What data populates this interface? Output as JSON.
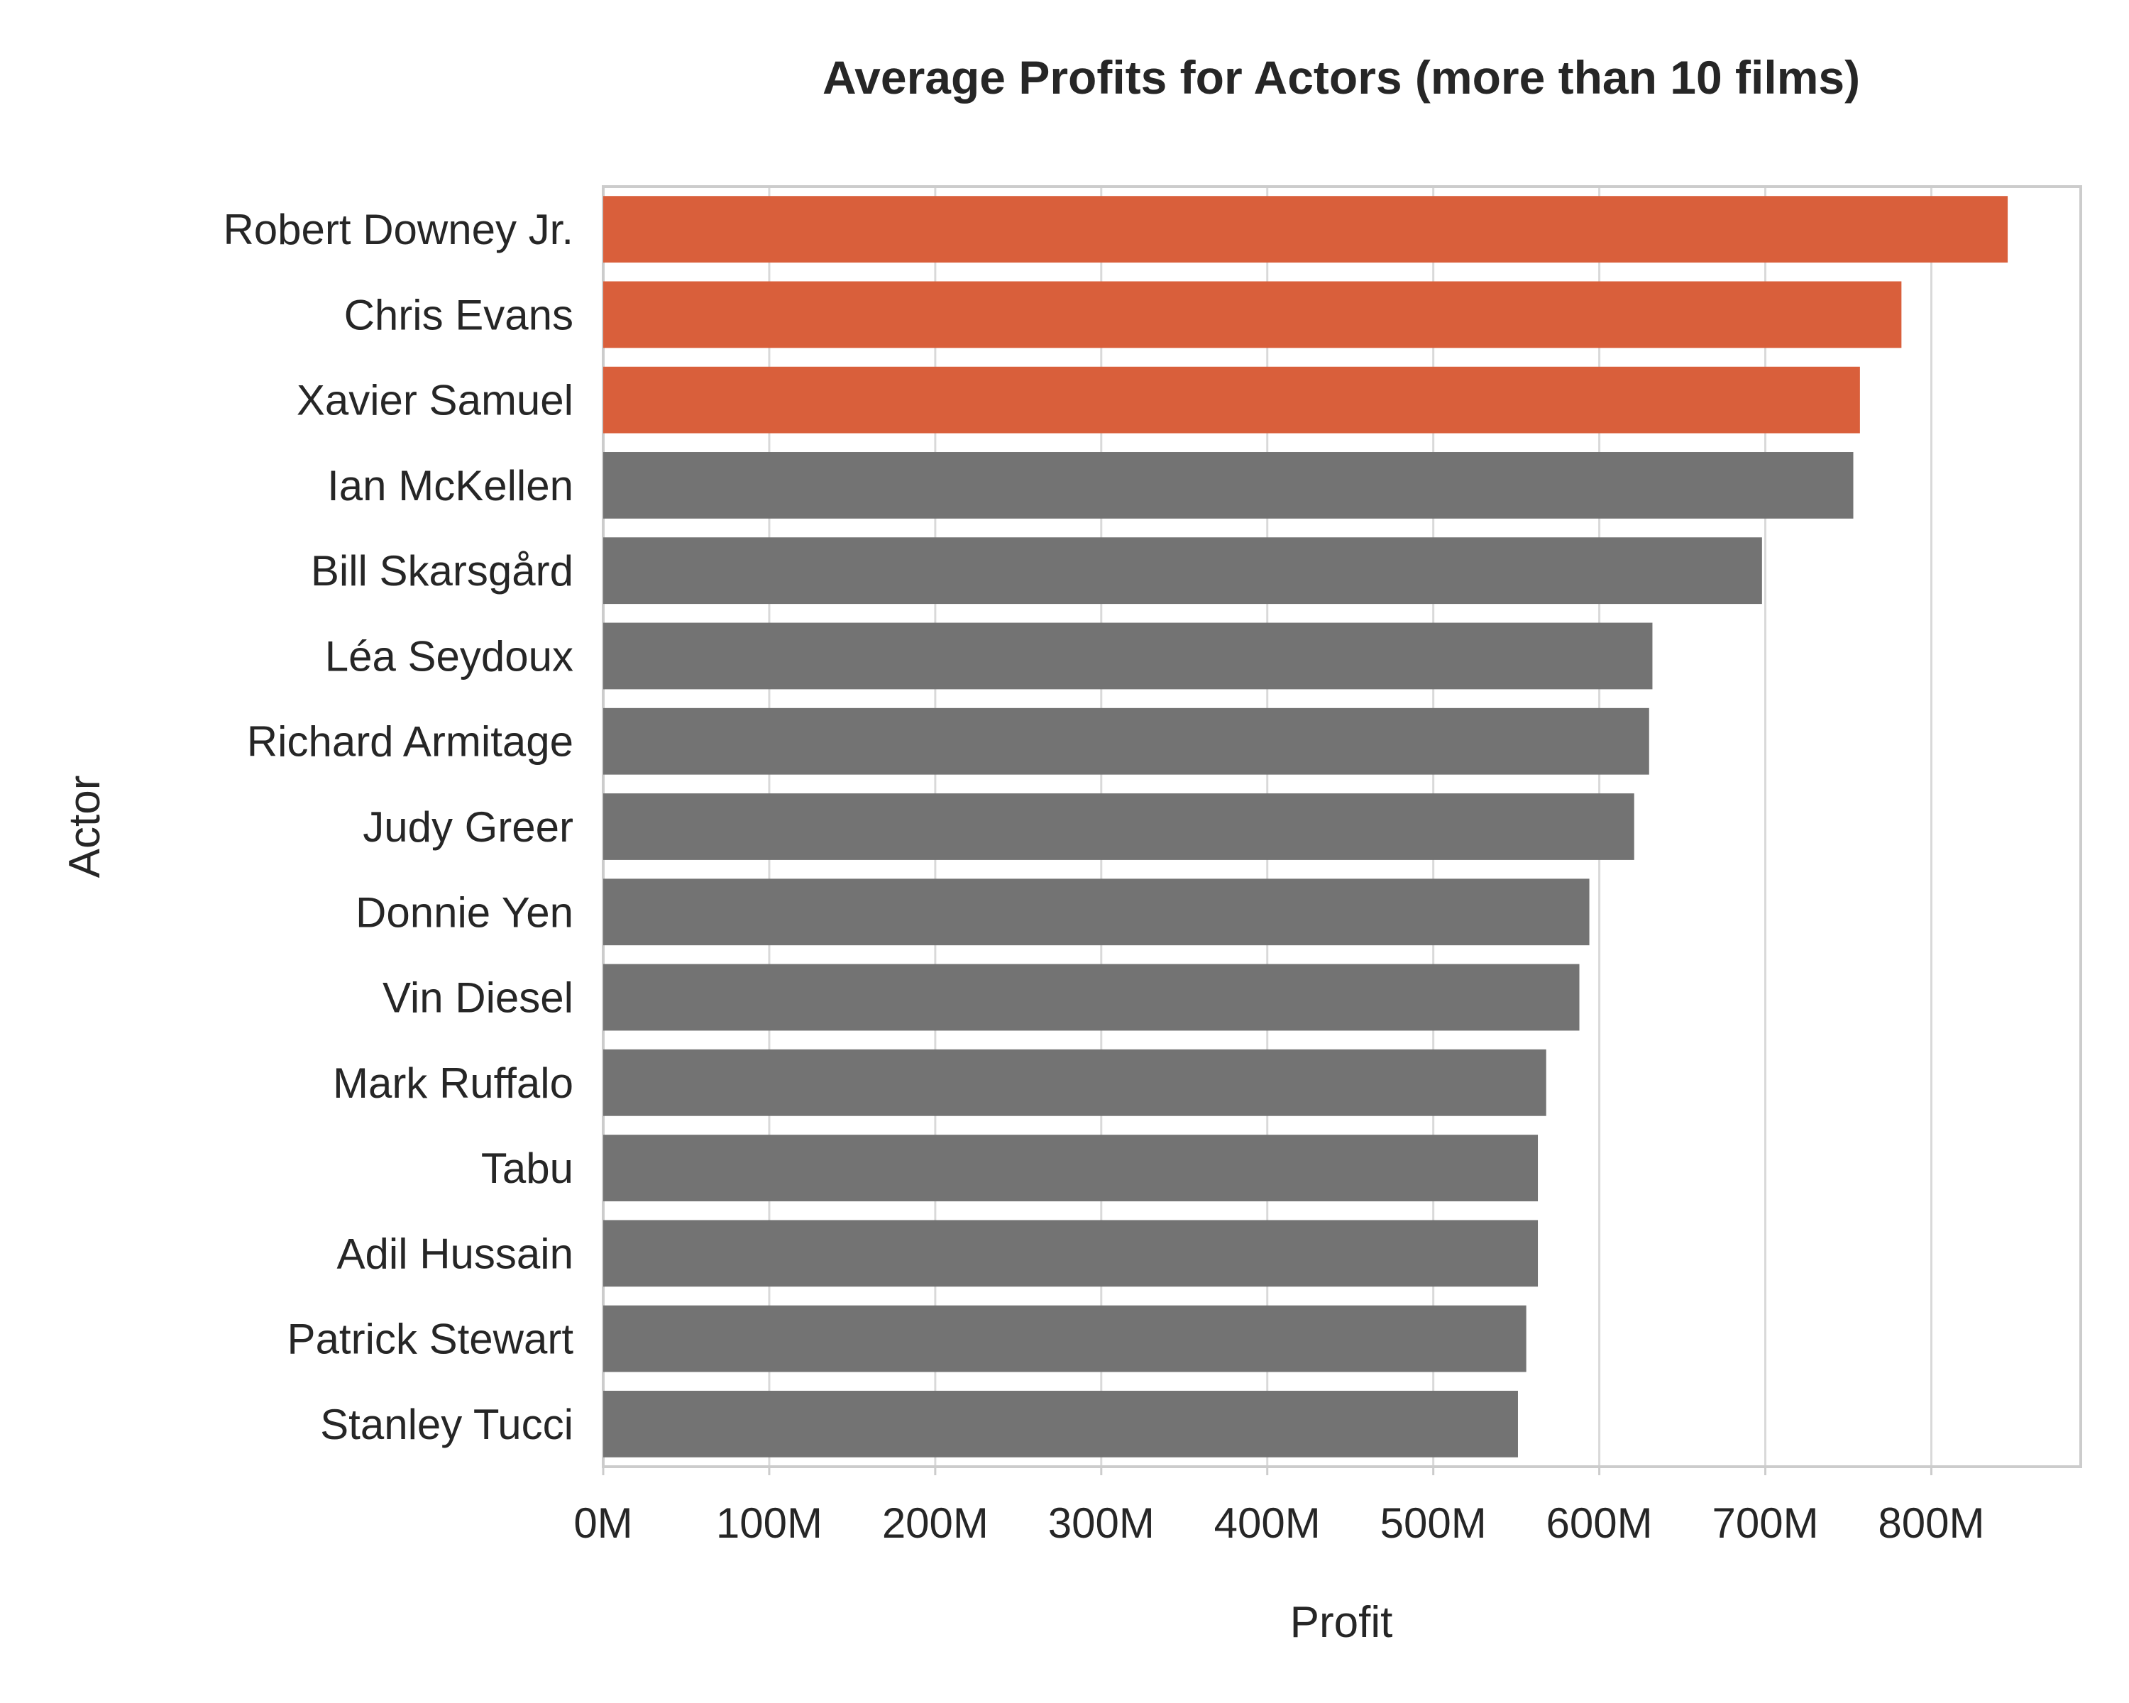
{
  "chart_data": {
    "type": "bar",
    "orientation": "horizontal",
    "title": "Average Profits for Actors (more than 10 films)",
    "xlabel": "Profit",
    "ylabel": "Actor",
    "xlim": [
      0,
      890
    ],
    "xunit": "M",
    "xticks": [
      0,
      100,
      200,
      300,
      400,
      500,
      600,
      700,
      800
    ],
    "xtick_labels": [
      "0M",
      "100M",
      "200M",
      "300M",
      "400M",
      "500M",
      "600M",
      "700M",
      "800M"
    ],
    "grid": true,
    "categories": [
      "Robert Downey Jr.",
      "Chris Evans",
      "Xavier Samuel",
      "Ian McKellen",
      "Bill Skarsgård",
      "Léa Seydoux",
      "Richard Armitage",
      "Judy Greer",
      "Donnie Yen",
      "Vin Diesel",
      "Mark Ruffalo",
      "Tabu",
      "Adil Hussain",
      "Patrick Stewart",
      "Stanley Tucci"
    ],
    "values": [
      846,
      782,
      757,
      753,
      698,
      632,
      630,
      621,
      594,
      588,
      568,
      563,
      563,
      556,
      551
    ],
    "highlight_count": 3,
    "colors": {
      "highlight": "#D95F3B",
      "default": "#737373",
      "grid": "#D9D9D9",
      "spine": "#CCCCCC",
      "text": "#262626"
    }
  }
}
